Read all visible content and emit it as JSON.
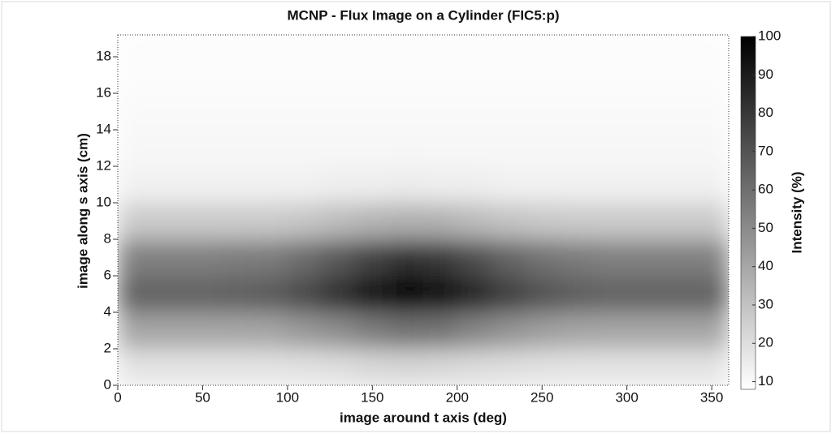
{
  "chart_data": {
    "type": "heatmap",
    "title": "MCNP - Flux Image on a Cylinder (FIC5:p)",
    "x_label": "image around t axis (deg)",
    "y_label": "image along s axis (cm)",
    "colorbar_label": "Intensity (%)",
    "xbins": [
      0,
      20,
      40,
      60,
      80,
      100,
      120,
      140,
      160,
      180,
      200,
      220,
      240,
      260,
      280,
      300,
      320,
      340,
      360
    ],
    "ybins": [
      0,
      2,
      4,
      6,
      8,
      10,
      12,
      14,
      16,
      18,
      19.2
    ],
    "values": [
      [
        18,
        18,
        18,
        18,
        18,
        19,
        20,
        22,
        23,
        22,
        21,
        20,
        19,
        18,
        18,
        18,
        18,
        18
      ],
      [
        40,
        40,
        40,
        40,
        41,
        45,
        49,
        55,
        59,
        58,
        52,
        47,
        43,
        41,
        40,
        40,
        40,
        40
      ],
      [
        64,
        64,
        64,
        65,
        67,
        73,
        82,
        91,
        98,
        96,
        86,
        77,
        70,
        66,
        64,
        64,
        64,
        64
      ],
      [
        54,
        54,
        54,
        55,
        56,
        61,
        68,
        76,
        82,
        80,
        72,
        64,
        59,
        56,
        54,
        54,
        54,
        54
      ],
      [
        27,
        27,
        27,
        27,
        27,
        29,
        32,
        35,
        37,
        36,
        33,
        30,
        28,
        27,
        27,
        27,
        27,
        27
      ],
      [
        13,
        13,
        13,
        13,
        13,
        13,
        14,
        14,
        15,
        14,
        14,
        13,
        13,
        13,
        13,
        13,
        13,
        13
      ],
      [
        11,
        11,
        11,
        11,
        11,
        11,
        11,
        11,
        11,
        11,
        11,
        11,
        11,
        11,
        11,
        11,
        11,
        11
      ],
      [
        10,
        10,
        10,
        10,
        10,
        10,
        10,
        10,
        10,
        10,
        10,
        10,
        10,
        10,
        10,
        10,
        10,
        10
      ],
      [
        9,
        9,
        9,
        9,
        9,
        9,
        9,
        9,
        9,
        9,
        9,
        9,
        9,
        9,
        9,
        9,
        9,
        9
      ],
      [
        9,
        9,
        9,
        9,
        9,
        9,
        9,
        9,
        9,
        9,
        9,
        9,
        9,
        9,
        9,
        9,
        9,
        9
      ]
    ],
    "xlim": [
      0,
      360
    ],
    "xticks": [
      0,
      50,
      100,
      150,
      200,
      250,
      300,
      350
    ],
    "ylim": [
      0,
      19.2
    ],
    "yticks": [
      0,
      2,
      4,
      6,
      8,
      10,
      12,
      14,
      16,
      18
    ],
    "clim": [
      8,
      100
    ],
    "cticks": [
      10,
      20,
      30,
      40,
      50,
      60,
      70,
      80,
      90,
      100
    ],
    "colorscale": [
      "#ffffff",
      "#000000"
    ]
  }
}
